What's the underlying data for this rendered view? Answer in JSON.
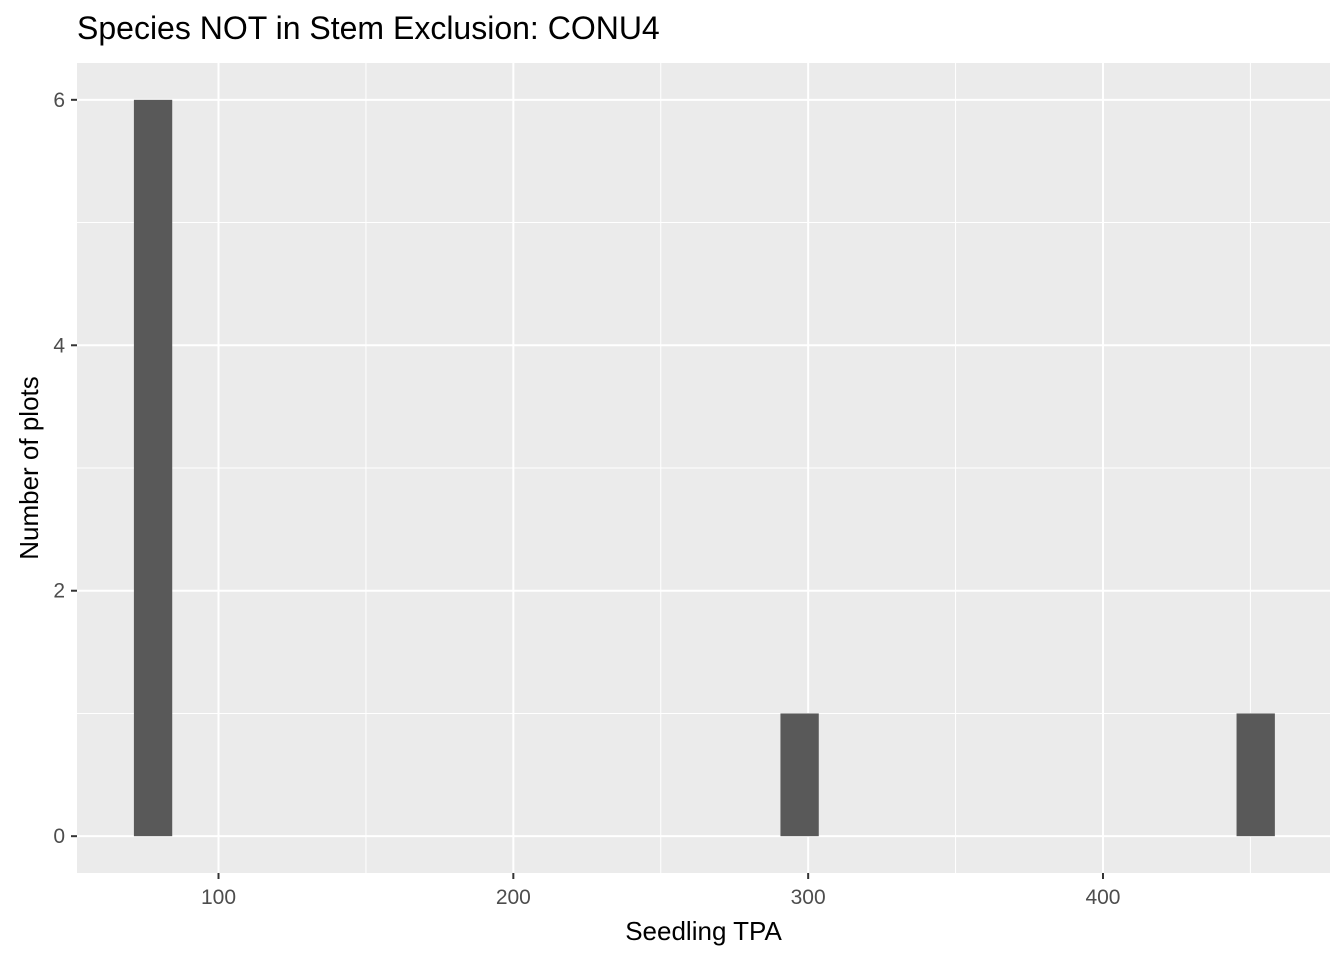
{
  "chart_data": {
    "type": "bar",
    "title": "Species NOT in Stem Exclusion: CONU4",
    "xlabel": "Seedling TPA",
    "ylabel": "Number of plots",
    "xlim": [
      52,
      477
    ],
    "ylim": [
      -0.3,
      6.3
    ],
    "x_ticks": [
      100,
      200,
      300,
      400
    ],
    "x_tick_labels": [
      "100",
      "200",
      "300",
      "400"
    ],
    "x_minor_breaks": [
      150,
      250,
      350,
      450
    ],
    "y_ticks": [
      0,
      2,
      4,
      6
    ],
    "y_tick_labels": [
      "0",
      "2",
      "4",
      "6"
    ],
    "y_minor_breaks": [
      1,
      3,
      5
    ],
    "grid": true,
    "bins": [
      {
        "x_start": 71.3,
        "x_end": 84.3,
        "count": 6
      },
      {
        "x_start": 290.6,
        "x_end": 303.6,
        "count": 1
      },
      {
        "x_start": 445.3,
        "x_end": 458.3,
        "count": 1
      }
    ],
    "colors": {
      "panel_background": "#ebebeb",
      "grid": "#ffffff",
      "bar_fill": "#595959",
      "tick_text": "#4d4d4d",
      "tick_mark": "#333333"
    }
  }
}
